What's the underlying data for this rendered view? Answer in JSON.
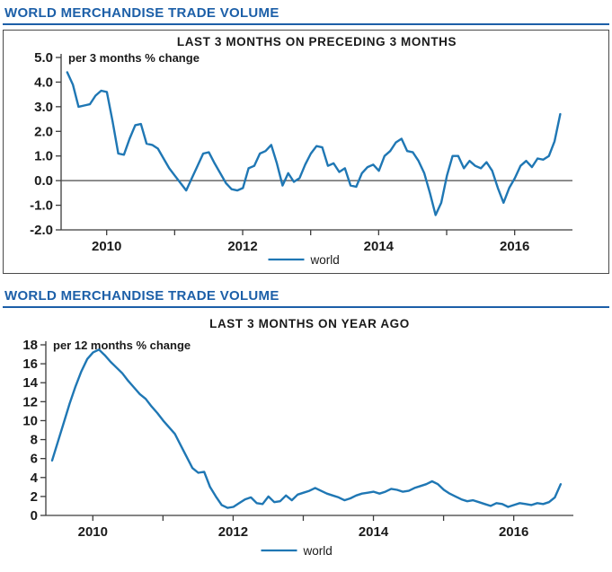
{
  "colors": {
    "heading_blue": "#1c5fa8",
    "series_blue": "#1f77b4",
    "axis": "#3c3c3c",
    "text": "#1a1a1a",
    "zero_line": "#4a4a4a"
  },
  "panels": [
    {
      "heading": "WORLD MERCHANDISE TRADE VOLUME"
    },
    {
      "heading": "WORLD MERCHANDISE TRADE VOLUME"
    }
  ],
  "chart_data": [
    {
      "type": "line",
      "title": "LAST 3 MONTHS ON PRECEDING 3 MONTHS",
      "ylabel": "per 3 months % change",
      "xlabel": "",
      "legend": [
        "world"
      ],
      "legend_position": "bottom",
      "grid": false,
      "xlim": [
        2009.33,
        2016.85
      ],
      "ylim": [
        -2.0,
        5.0
      ],
      "yticks": [
        5.0,
        4.0,
        3.0,
        2.0,
        1.0,
        0.0,
        -1.0,
        -2.0
      ],
      "ytick_labels": [
        "5.0",
        "4.0",
        "3.0",
        "2.0",
        "1.0",
        "0.0",
        "-1.0",
        "-2.0"
      ],
      "xticks": [
        2010,
        2011,
        2012,
        2013,
        2014,
        2015,
        2016
      ],
      "xtick_labels": [
        "2010",
        "",
        "2012",
        "",
        "2014",
        "",
        "2016"
      ],
      "zero_line": 0.0,
      "series": [
        {
          "name": "world",
          "x_start": 2009.42,
          "x_step": 0.0833333,
          "values": [
            4.4,
            3.9,
            3.0,
            3.05,
            3.1,
            3.45,
            3.65,
            3.6,
            2.4,
            1.1,
            1.05,
            1.7,
            2.25,
            2.3,
            1.5,
            1.45,
            1.3,
            0.9,
            0.5,
            0.2,
            -0.1,
            -0.4,
            0.1,
            0.6,
            1.1,
            1.15,
            0.7,
            0.3,
            -0.1,
            -0.35,
            -0.4,
            -0.3,
            0.5,
            0.6,
            1.1,
            1.2,
            1.45,
            0.7,
            -0.2,
            0.3,
            -0.05,
            0.1,
            0.65,
            1.1,
            1.4,
            1.35,
            0.6,
            0.7,
            0.35,
            0.5,
            -0.2,
            -0.25,
            0.3,
            0.55,
            0.65,
            0.4,
            1.0,
            1.2,
            1.55,
            1.7,
            1.2,
            1.15,
            0.8,
            0.3,
            -0.5,
            -1.4,
            -0.9,
            0.2,
            1.0,
            1.0,
            0.5,
            0.8,
            0.6,
            0.5,
            0.75,
            0.4,
            -0.3,
            -0.9,
            -0.3,
            0.1,
            0.6,
            0.8,
            0.55,
            0.9,
            0.85,
            1.0,
            1.6,
            2.7
          ]
        }
      ]
    },
    {
      "type": "line",
      "title": "LAST 3 MONTHS ON YEAR AGO",
      "ylabel": "per 12 months % change",
      "xlabel": "",
      "legend": [
        "world"
      ],
      "legend_position": "bottom",
      "grid": false,
      "xlim": [
        2009.33,
        2016.85
      ],
      "ylim": [
        0,
        18
      ],
      "yticks": [
        18,
        16,
        14,
        12,
        10,
        8,
        6,
        4,
        2,
        0
      ],
      "ytick_labels": [
        "18",
        "16",
        "14",
        "12",
        "10",
        "8",
        "6",
        "4",
        "2",
        "0"
      ],
      "xticks": [
        2010,
        2011,
        2012,
        2013,
        2014,
        2015,
        2016
      ],
      "xtick_labels": [
        "2010",
        "",
        "2012",
        "",
        "2014",
        "",
        "2016"
      ],
      "zero_line": null,
      "series": [
        {
          "name": "world",
          "x_start": 2009.42,
          "x_step": 0.0833333,
          "values": [
            5.8,
            7.8,
            9.8,
            11.8,
            13.6,
            15.2,
            16.5,
            17.2,
            17.5,
            16.9,
            16.2,
            15.6,
            15.0,
            14.2,
            13.5,
            12.8,
            12.3,
            11.5,
            10.8,
            10.0,
            9.3,
            8.6,
            7.4,
            6.2,
            5.0,
            4.5,
            4.6,
            3.0,
            2.0,
            1.1,
            0.8,
            0.9,
            1.3,
            1.7,
            1.9,
            1.3,
            1.2,
            2.0,
            1.4,
            1.5,
            2.1,
            1.6,
            2.2,
            2.4,
            2.6,
            2.9,
            2.6,
            2.3,
            2.1,
            1.9,
            1.6,
            1.8,
            2.1,
            2.3,
            2.4,
            2.5,
            2.3,
            2.5,
            2.8,
            2.7,
            2.5,
            2.6,
            2.9,
            3.1,
            3.3,
            3.6,
            3.3,
            2.7,
            2.3,
            2.0,
            1.7,
            1.5,
            1.6,
            1.4,
            1.2,
            1.0,
            1.3,
            1.2,
            0.9,
            1.1,
            1.3,
            1.2,
            1.1,
            1.3,
            1.2,
            1.4,
            1.9,
            3.3
          ]
        }
      ]
    }
  ]
}
